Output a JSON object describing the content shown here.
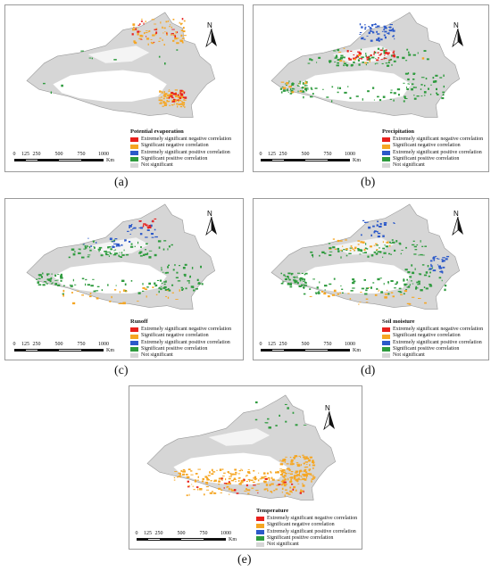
{
  "colors": {
    "extremely_negative": "#e8201c",
    "significant_negative": "#f5a623",
    "extremely_positive": "#2c59c9",
    "significant_positive": "#2e9b3e",
    "not_significant": "#d6d6d6"
  },
  "legend_items": [
    {
      "label": "Extremely significant negative correlation",
      "color": "#e8201c"
    },
    {
      "label": "Significant negative correlation",
      "color": "#f5a623"
    },
    {
      "label": "Extremely significant positive correlation",
      "color": "#2c59c9"
    },
    {
      "label": "Significant positive  correlation",
      "color": "#2e9b3e"
    },
    {
      "label": "Not significant",
      "color": "#d6d6d6"
    }
  ],
  "scale": {
    "ticks": [
      "0",
      "125",
      "250",
      "500",
      "750",
      "1000"
    ],
    "unit": "Km"
  },
  "compass_label": "N",
  "panels": [
    {
      "id": "a",
      "title": "Potential evaporation",
      "caption": "(a)"
    },
    {
      "id": "b",
      "title": "Precipitation",
      "caption": "(b)"
    },
    {
      "id": "c",
      "title": "Runoff",
      "caption": "(c)"
    },
    {
      "id": "d",
      "title": "Soil moisture",
      "caption": "(d)"
    },
    {
      "id": "e",
      "title": "Temperature",
      "caption": "(e)"
    }
  ]
}
